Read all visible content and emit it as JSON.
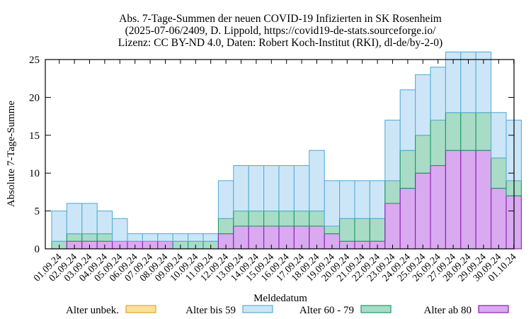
{
  "chart_data": {
    "type": "bar",
    "stacked": true,
    "title_lines": [
      "Abs. 7-Tage-Summen der neuen COVID-19 Infizierten in SK Rosenheim",
      "(2025-07-06/2409, D. Lippold, https://covid19-de-stats.sourceforge.io/",
      "Lizenz: CC BY-ND 4.0, Daten: Robert Koch-Institut (RKI), dl-de/by-2-0)"
    ],
    "xlabel": "Meldedatum",
    "ylabel": "Absolute 7-Tage-Summe",
    "ylim": [
      0,
      25
    ],
    "yticks": [
      0,
      5,
      10,
      15,
      20,
      25
    ],
    "grid": false,
    "legend_position": "bottom",
    "categories": [
      "01.09.24",
      "02.09.24",
      "03.09.24",
      "04.09.24",
      "05.09.24",
      "06.09.24",
      "07.09.24",
      "08.09.24",
      "09.09.24",
      "10.09.24",
      "11.09.24",
      "12.09.24",
      "13.09.24",
      "14.09.24",
      "15.09.24",
      "16.09.24",
      "17.09.24",
      "18.09.24",
      "19.09.24",
      "20.09.24",
      "21.09.24",
      "22.09.24",
      "23.09.24",
      "24.09.24",
      "25.09.24",
      "26.09.24",
      "27.09.24",
      "28.09.24",
      "29.09.24",
      "30.09.24",
      "01.10.24"
    ],
    "series": [
      {
        "name": "Alter ab 80",
        "color": "#d9aaf0",
        "edge": "#8a1fb2",
        "values": [
          0,
          1,
          1,
          1,
          1,
          1,
          1,
          1,
          0,
          0,
          0,
          2,
          3,
          3,
          3,
          3,
          3,
          3,
          2,
          1,
          1,
          1,
          6,
          8,
          10,
          11,
          13,
          13,
          13,
          8,
          7
        ]
      },
      {
        "name": "Alter 60 - 79",
        "color": "#a9dcc6",
        "edge": "#1a9a6a",
        "values": [
          1,
          1,
          1,
          1,
          0,
          0,
          0,
          0,
          1,
          1,
          1,
          2,
          2,
          2,
          2,
          2,
          2,
          2,
          1,
          3,
          3,
          3,
          3,
          5,
          5,
          6,
          5,
          5,
          5,
          4,
          2
        ]
      },
      {
        "name": "Alter bis 59",
        "color": "#cce6f8",
        "edge": "#5aaed8",
        "values": [
          4,
          4,
          4,
          3,
          3,
          1,
          1,
          1,
          1,
          1,
          1,
          5,
          6,
          6,
          6,
          6,
          6,
          8,
          6,
          5,
          5,
          5,
          8,
          8,
          8,
          7,
          8,
          8,
          8,
          6,
          8
        ]
      },
      {
        "name": "Alter unbek.",
        "color": "#fbe0a0",
        "edge": "#e3a526",
        "values": [
          0,
          0,
          0,
          0,
          0,
          0,
          0,
          0,
          0,
          0,
          0,
          0,
          0,
          0,
          0,
          0,
          0,
          0,
          0,
          0,
          0,
          0,
          0,
          0,
          0,
          0,
          0,
          0,
          0,
          0,
          0
        ]
      }
    ],
    "legend_order": [
      "Alter unbek.",
      "Alter bis 59",
      "Alter 60 - 79",
      "Alter ab 80"
    ]
  }
}
